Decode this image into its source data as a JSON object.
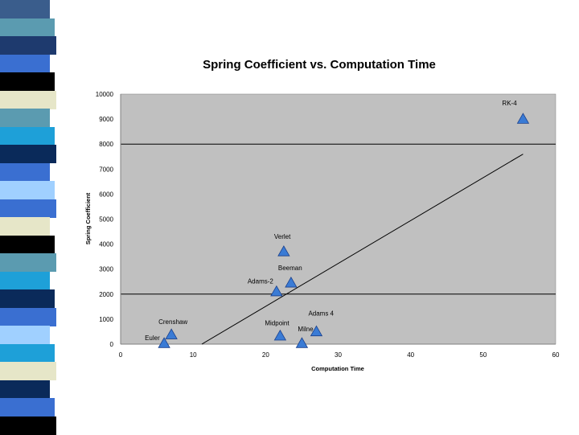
{
  "decoration": {
    "stripe_colors": [
      "#3a5d8c",
      "#5b9bb0",
      "#1e3a6e",
      "#3a6fd1",
      "#000000",
      "#e6e6c8",
      "#5b9bb0",
      "#1ea0d8",
      "#0a2a5a",
      "#3a6fd1",
      "#a0d0ff",
      "#3a6fd1",
      "#e6e6c8",
      "#000000",
      "#5b9bb0",
      "#1ea0d8",
      "#0a2a5a",
      "#3a6fd1",
      "#a0d0ff",
      "#1ea0d8",
      "#e6e6c8",
      "#0a2a5a",
      "#3a6fd1",
      "#000000"
    ]
  },
  "chart_data": {
    "type": "scatter",
    "title": "Spring Coefficient vs. Computation Time",
    "xlabel": "Computation Time",
    "ylabel": "Spring Coefficient",
    "xlim": [
      0,
      60
    ],
    "ylim": [
      0,
      10000
    ],
    "x_ticks": [
      "0",
      "10",
      "20",
      "30",
      "40",
      "50",
      "60"
    ],
    "y_ticks": [
      "0",
      "1000",
      "2000",
      "3000",
      "4000",
      "5000",
      "6000",
      "7000",
      "8000",
      "9000",
      "10000"
    ],
    "y_gridlines": [
      2000,
      8000
    ],
    "grid": true,
    "legend": "none",
    "marker": "triangle",
    "colors": {
      "plot_background": "#c0c0c0",
      "marker_fill": "#3a7bd5",
      "marker_stroke": "#1a3f8a",
      "trendline": "#000000"
    },
    "points": [
      {
        "label": "RK-4",
        "x": 55.5,
        "y": 9000
      },
      {
        "label": "Verlet",
        "x": 22.5,
        "y": 3700
      },
      {
        "label": "Beeman",
        "x": 23.5,
        "y": 2450
      },
      {
        "label": "Adams-2",
        "x": 21.5,
        "y": 2100
      },
      {
        "label": "Crenshaw",
        "x": 7,
        "y": 380
      },
      {
        "label": "Euler",
        "x": 6,
        "y": 30
      },
      {
        "label": "Midpoint",
        "x": 22,
        "y": 330
      },
      {
        "label": "Milne",
        "x": 25,
        "y": 30
      },
      {
        "label": "Adams 4",
        "x": 27,
        "y": 500
      }
    ],
    "trendline": {
      "x": [
        11.2,
        55.5
      ],
      "y": [
        0,
        7600
      ]
    }
  }
}
